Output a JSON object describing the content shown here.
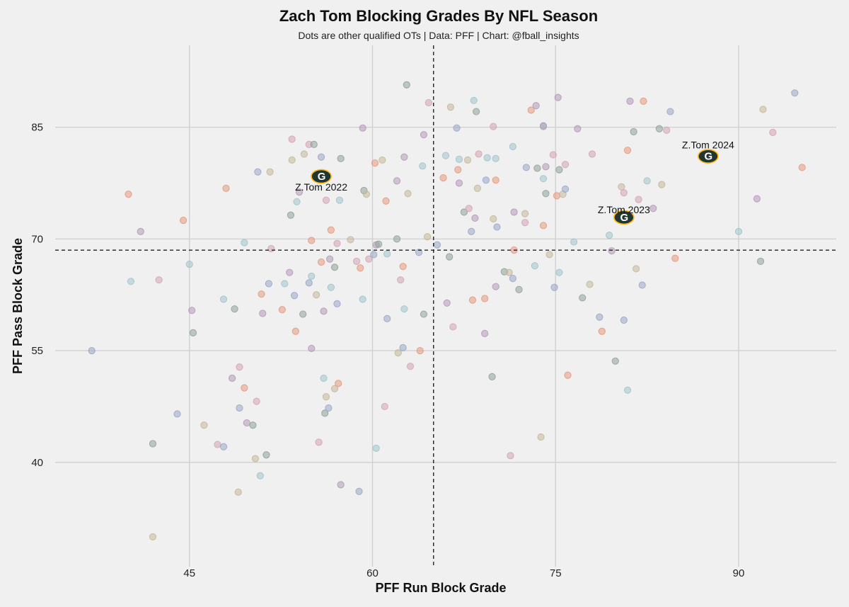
{
  "title": "Zach Tom Blocking Grades By NFL Season",
  "subtitle": "Dots are other qualified OTs | Data: PFF | Chart: @fball_insights",
  "chart_data": {
    "type": "scatter",
    "xlabel": "PFF Run Block Grade",
    "ylabel": "PFF Pass Block Grade",
    "xlim": [
      34,
      98
    ],
    "ylim": [
      26,
      96
    ],
    "xticks": [
      45,
      60,
      75,
      90
    ],
    "yticks": [
      40,
      55,
      70,
      85
    ],
    "grid": true,
    "reference_lines": {
      "x": 65,
      "y": 68.5
    },
    "highlight_color": "#203731",
    "highlight_accent": "#FFB612",
    "highlighted": [
      {
        "label": "Z.Tom 2022",
        "x": 55.8,
        "y": 78.4
      },
      {
        "label": "Z.Tom 2023",
        "x": 80.6,
        "y": 72.9
      },
      {
        "label": "Z.Tom 2024",
        "x": 87.5,
        "y": 81.1
      }
    ],
    "other_ots": [
      [
        37.0,
        55.0
      ],
      [
        40.0,
        76.0
      ],
      [
        40.2,
        64.3
      ],
      [
        41.0,
        71.0
      ],
      [
        42.0,
        42.5
      ],
      [
        42.0,
        30.0
      ],
      [
        42.5,
        64.5
      ],
      [
        44.0,
        46.5
      ],
      [
        44.5,
        72.5
      ],
      [
        45.0,
        66.6
      ],
      [
        45.2,
        60.4
      ],
      [
        45.3,
        57.4
      ],
      [
        46.2,
        45.0
      ],
      [
        47.3,
        42.4
      ],
      [
        47.8,
        42.1
      ],
      [
        48.0,
        76.8
      ],
      [
        47.8,
        61.9
      ],
      [
        48.5,
        51.3
      ],
      [
        48.7,
        60.6
      ],
      [
        49.0,
        36.0
      ],
      [
        49.1,
        52.8
      ],
      [
        49.1,
        47.3
      ],
      [
        49.5,
        50.0
      ],
      [
        49.5,
        69.5
      ],
      [
        49.7,
        45.3
      ],
      [
        50.2,
        45.0
      ],
      [
        50.4,
        40.5
      ],
      [
        50.5,
        48.2
      ],
      [
        50.6,
        79.0
      ],
      [
        50.9,
        62.6
      ],
      [
        50.8,
        38.2
      ],
      [
        51.0,
        60.0
      ],
      [
        51.3,
        41.0
      ],
      [
        51.6,
        79.0
      ],
      [
        51.7,
        68.7
      ],
      [
        51.5,
        64.0
      ],
      [
        52.6,
        60.5
      ],
      [
        52.8,
        64.0
      ],
      [
        53.2,
        65.5
      ],
      [
        53.3,
        73.2
      ],
      [
        53.4,
        80.6
      ],
      [
        53.4,
        83.4
      ],
      [
        53.6,
        62.4
      ],
      [
        53.7,
        57.6
      ],
      [
        53.8,
        75.0
      ],
      [
        54.0,
        76.3
      ],
      [
        54.3,
        59.9
      ],
      [
        54.4,
        81.4
      ],
      [
        54.8,
        82.7
      ],
      [
        54.8,
        64.1
      ],
      [
        55.0,
        69.8
      ],
      [
        55.0,
        65.0
      ],
      [
        55.0,
        55.3
      ],
      [
        55.2,
        82.7
      ],
      [
        55.4,
        62.5
      ],
      [
        55.6,
        42.7
      ],
      [
        55.8,
        81.0
      ],
      [
        55.8,
        66.9
      ],
      [
        56.0,
        51.3
      ],
      [
        56.0,
        60.3
      ],
      [
        56.1,
        46.6
      ],
      [
        56.2,
        48.8
      ],
      [
        56.2,
        75.2
      ],
      [
        56.4,
        47.3
      ],
      [
        56.6,
        71.2
      ],
      [
        56.6,
        63.5
      ],
      [
        56.5,
        67.3
      ],
      [
        56.9,
        66.2
      ],
      [
        56.9,
        49.9
      ],
      [
        57.1,
        69.4
      ],
      [
        57.1,
        61.3
      ],
      [
        57.2,
        50.6
      ],
      [
        57.3,
        75.2
      ],
      [
        57.4,
        37.0
      ],
      [
        57.4,
        80.8
      ],
      [
        58.2,
        69.9
      ],
      [
        58.7,
        67.0
      ],
      [
        58.9,
        36.1
      ],
      [
        59.0,
        66.1
      ],
      [
        59.2,
        61.9
      ],
      [
        59.2,
        84.9
      ],
      [
        59.3,
        76.5
      ],
      [
        59.5,
        76.0
      ],
      [
        59.7,
        67.3
      ],
      [
        60.1,
        67.9
      ],
      [
        60.2,
        80.2
      ],
      [
        60.3,
        41.9
      ],
      [
        60.3,
        69.2
      ],
      [
        60.5,
        69.3
      ],
      [
        60.8,
        80.6
      ],
      [
        61.0,
        47.5
      ],
      [
        61.2,
        59.3
      ],
      [
        61.1,
        75.1
      ],
      [
        61.2,
        68.0
      ],
      [
        62.0,
        77.8
      ],
      [
        62.0,
        70.0
      ],
      [
        62.1,
        54.7
      ],
      [
        62.3,
        64.5
      ],
      [
        62.5,
        55.4
      ],
      [
        62.5,
        66.3
      ],
      [
        62.6,
        60.6
      ],
      [
        62.6,
        81.0
      ],
      [
        62.8,
        90.7
      ],
      [
        62.9,
        76.1
      ],
      [
        63.1,
        52.9
      ],
      [
        63.8,
        68.2
      ],
      [
        63.9,
        55.0
      ],
      [
        64.1,
        79.8
      ],
      [
        64.2,
        84.0
      ],
      [
        64.2,
        59.9
      ],
      [
        64.5,
        70.3
      ],
      [
        64.6,
        88.3
      ],
      [
        65.3,
        69.2
      ],
      [
        65.8,
        78.2
      ],
      [
        66.0,
        81.2
      ],
      [
        66.1,
        61.4
      ],
      [
        66.3,
        67.6
      ],
      [
        66.4,
        87.7
      ],
      [
        66.6,
        58.2
      ],
      [
        66.9,
        84.9
      ],
      [
        67.0,
        79.3
      ],
      [
        67.1,
        80.7
      ],
      [
        67.1,
        77.5
      ],
      [
        67.5,
        73.6
      ],
      [
        67.8,
        80.6
      ],
      [
        67.9,
        74.1
      ],
      [
        68.1,
        71.0
      ],
      [
        68.2,
        61.8
      ],
      [
        68.3,
        88.6
      ],
      [
        68.4,
        72.8
      ],
      [
        68.5,
        87.1
      ],
      [
        68.6,
        76.8
      ],
      [
        68.7,
        81.4
      ],
      [
        69.3,
        77.9
      ],
      [
        69.2,
        62.0
      ],
      [
        69.4,
        80.9
      ],
      [
        69.2,
        57.3
      ],
      [
        69.8,
        51.5
      ],
      [
        69.9,
        72.7
      ],
      [
        69.9,
        85.1
      ],
      [
        70.2,
        71.6
      ],
      [
        70.1,
        77.9
      ],
      [
        70.1,
        80.8
      ],
      [
        70.1,
        63.6
      ],
      [
        70.8,
        65.6
      ],
      [
        71.2,
        65.5
      ],
      [
        71.3,
        40.9
      ],
      [
        71.5,
        64.7
      ],
      [
        71.6,
        68.5
      ],
      [
        71.5,
        82.4
      ],
      [
        71.6,
        73.6
      ],
      [
        72.0,
        63.2
      ],
      [
        72.5,
        73.4
      ],
      [
        72.5,
        72.2
      ],
      [
        72.6,
        79.6
      ],
      [
        73.0,
        87.3
      ],
      [
        73.3,
        66.4
      ],
      [
        73.4,
        87.9
      ],
      [
        73.5,
        79.5
      ],
      [
        73.8,
        43.4
      ],
      [
        74.0,
        85.1
      ],
      [
        74.0,
        85.2
      ],
      [
        74.0,
        71.8
      ],
      [
        74.0,
        78.1
      ],
      [
        74.2,
        79.7
      ],
      [
        74.2,
        76.1
      ],
      [
        74.5,
        67.9
      ],
      [
        74.8,
        81.3
      ],
      [
        74.9,
        63.5
      ],
      [
        75.1,
        75.8
      ],
      [
        75.3,
        65.5
      ],
      [
        75.2,
        89.0
      ],
      [
        75.3,
        79.3
      ],
      [
        75.6,
        76.0
      ],
      [
        75.8,
        80.0
      ],
      [
        75.8,
        76.7
      ],
      [
        76.0,
        51.7
      ],
      [
        76.5,
        69.6
      ],
      [
        76.8,
        84.8
      ],
      [
        77.2,
        62.1
      ],
      [
        77.8,
        63.9
      ],
      [
        78.0,
        81.4
      ],
      [
        78.6,
        59.5
      ],
      [
        78.8,
        57.6
      ],
      [
        79.4,
        70.5
      ],
      [
        79.6,
        68.4
      ],
      [
        79.9,
        53.6
      ],
      [
        80.4,
        77.0
      ],
      [
        80.6,
        76.2
      ],
      [
        80.6,
        59.1
      ],
      [
        80.9,
        81.9
      ],
      [
        80.9,
        49.7
      ],
      [
        81.1,
        88.5
      ],
      [
        81.4,
        84.4
      ],
      [
        81.6,
        66.0
      ],
      [
        81.8,
        75.3
      ],
      [
        82.1,
        63.8
      ],
      [
        82.2,
        88.5
      ],
      [
        82.5,
        77.8
      ],
      [
        83.0,
        74.1
      ],
      [
        83.5,
        84.8
      ],
      [
        83.7,
        77.3
      ],
      [
        84.1,
        84.6
      ],
      [
        84.4,
        87.1
      ],
      [
        84.8,
        67.4
      ],
      [
        90.0,
        71.0
      ],
      [
        91.5,
        75.4
      ],
      [
        91.8,
        67.0
      ],
      [
        92.0,
        87.4
      ],
      [
        92.8,
        84.3
      ],
      [
        94.6,
        89.6
      ],
      [
        95.2,
        79.6
      ]
    ]
  }
}
